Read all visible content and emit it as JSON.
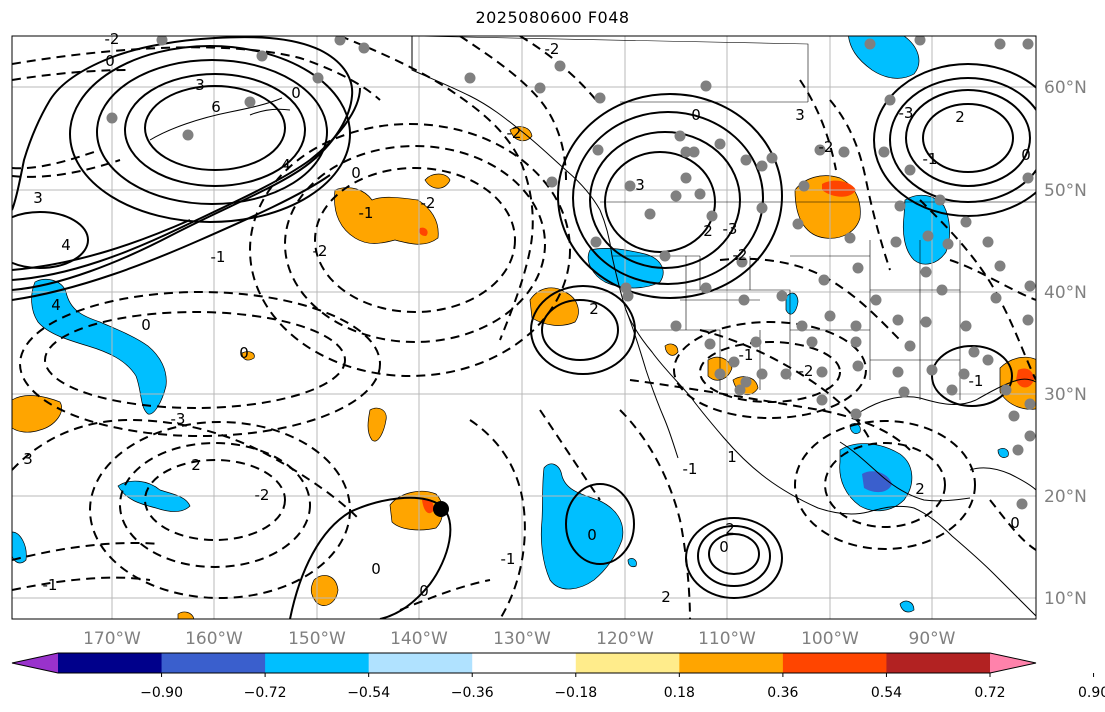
{
  "title": "2025080600 F048",
  "lon_labels": [
    "170°W",
    "160°W",
    "150°W",
    "140°W",
    "130°W",
    "120°W",
    "110°W",
    "100°W",
    "90°W"
  ],
  "lat_labels": [
    "60°N",
    "50°N",
    "40°N",
    "30°N",
    "20°N",
    "10°N"
  ],
  "colorbar": {
    "colors": [
      "#9932CC",
      "#00008B",
      "#3A5FCD",
      "#00BFFF",
      "#B0E2FF",
      "#FFFFFF",
      "#FFEC8B",
      "#FFA500",
      "#FF4500",
      "#B22222",
      "#FF82AB"
    ],
    "tick_labels": [
      "−0.90",
      "−0.72",
      "−0.54",
      "−0.36",
      "−0.18",
      "0.18",
      "0.36",
      "0.54",
      "0.72",
      "0.90"
    ]
  },
  "contour_labels": [
    "-2",
    "0",
    "3",
    "6",
    "4",
    "3",
    "4",
    "-1",
    "-2",
    "0",
    "-2",
    "0",
    "-1",
    "-2",
    "0",
    "-3",
    "0",
    "4",
    "3",
    "2",
    "-2",
    "-1",
    "-2",
    "3",
    "2",
    "-3",
    "-2",
    "-1",
    "-2",
    "2",
    "3",
    "0",
    "-2",
    "-3",
    "2",
    "0",
    "-1",
    "2",
    "0",
    "2",
    "-1",
    "0",
    "0",
    "1",
    "2",
    "-1",
    "0",
    "0",
    "-1"
  ]
}
